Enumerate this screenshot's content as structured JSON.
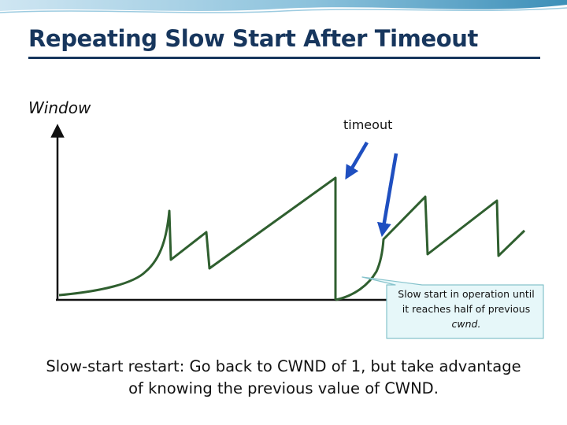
{
  "slide": {
    "title": "Repeating Slow Start After Timeout",
    "y_axis_label": "Window",
    "timeout_label": "timeout",
    "callout": {
      "line1": "Slow start in operation until",
      "line2": "it reaches half of previous",
      "line3": "cwnd."
    },
    "caption": {
      "line1": "Slow-start restart: Go back to CWND of 1, but take advantage",
      "line2": "of knowing the previous value of CWND."
    }
  },
  "colors": {
    "title": "#17365d",
    "curve": "#2f5f2f",
    "arrow": "#1f4fc0",
    "callout_fill": "#e6f7f9",
    "callout_border": "#86c3cc"
  }
}
